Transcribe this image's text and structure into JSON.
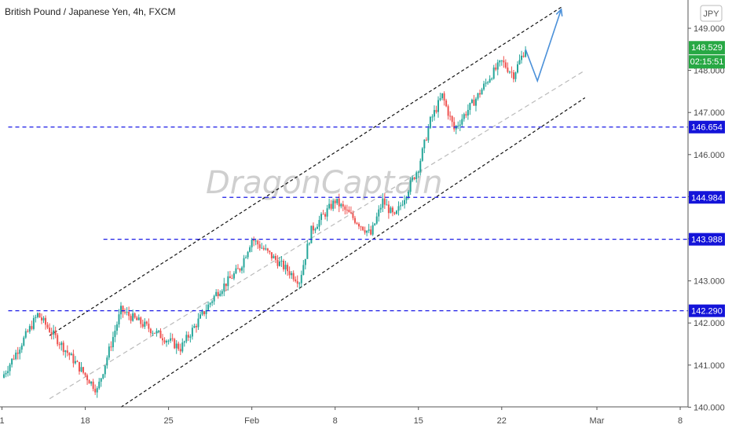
{
  "title": "British Pound / Japanese Yen, 4h, FXCM",
  "watermark": "DragonCaptain",
  "currency_label": "JPY",
  "colors": {
    "up": "#26a69a",
    "down": "#ef5350",
    "level_line": "#1a1ae6",
    "level_tag_bg": "#1414d9",
    "price_tag_bg": "#27a844",
    "arrow": "#4a90d9",
    "channel": "#111111",
    "midline": "#bbbbbb"
  },
  "chart_data": {
    "type": "candlestick",
    "title": "British Pound / Japanese Yen, 4h, FXCM",
    "y_ticks": [
      "149.000",
      "148.000",
      "147.000",
      "146.000",
      "145.000",
      "144.000",
      "143.000",
      "142.000",
      "141.000",
      "140.000"
    ],
    "x_ticks": [
      "1",
      "18",
      "25",
      "Feb",
      "8",
      "15",
      "22",
      "Mar",
      "8"
    ],
    "ylim": [
      139.95,
      149.4
    ],
    "horizontal_levels": [
      {
        "label": "146.654",
        "value": 146.654,
        "from_date": "Jan 11"
      },
      {
        "label": "144.984",
        "value": 144.984,
        "from_date": "Jan 29"
      },
      {
        "label": "143.988",
        "value": 143.988,
        "from_date": "Jan 19"
      },
      {
        "label": "142.290",
        "value": 142.29,
        "from_date": "Jan 11"
      }
    ],
    "last_price": "148.529",
    "countdown": "02:15:51",
    "channel_lines": [
      {
        "name": "upper",
        "points": [
          [
            "Jan 15",
            141.7
          ],
          [
            "Feb 27",
            149.5
          ]
        ]
      },
      {
        "name": "middle",
        "points": [
          [
            "Jan 15",
            140.2
          ],
          [
            "Feb 29",
            148.0
          ]
        ]
      },
      {
        "name": "lower",
        "points": [
          [
            "Jan 21",
            140.0
          ],
          [
            "Feb 29",
            147.35
          ]
        ]
      }
    ],
    "forecast_arrow": [
      [
        "Feb 24",
        148.5
      ],
      [
        "Feb 25",
        147.75
      ],
      [
        "Feb 27",
        149.45
      ]
    ],
    "key_points": [
      {
        "date": "Jan 11",
        "price": 140.7
      },
      {
        "date": "Jan 14",
        "price": 142.2
      },
      {
        "date": "Jan 19",
        "price": 140.4
      },
      {
        "date": "Jan 21",
        "price": 142.3
      },
      {
        "date": "Jan 26",
        "price": 141.4
      },
      {
        "date": "Jan 29",
        "price": 142.7
      },
      {
        "date": "Jan 31",
        "price": 143.3
      },
      {
        "date": "Feb 1",
        "price": 144.0
      },
      {
        "date": "Feb 5",
        "price": 143.0
      },
      {
        "date": "Feb 6",
        "price": 144.2
      },
      {
        "date": "Feb 8",
        "price": 144.9
      },
      {
        "date": "Feb 11",
        "price": 144.1
      },
      {
        "date": "Feb 12",
        "price": 144.9
      },
      {
        "date": "Feb 13",
        "price": 144.5
      },
      {
        "date": "Feb 15",
        "price": 145.7
      },
      {
        "date": "Feb 16",
        "price": 146.8
      },
      {
        "date": "Feb 17",
        "price": 147.4
      },
      {
        "date": "Feb 18",
        "price": 146.6
      },
      {
        "date": "Feb 19",
        "price": 147.0
      },
      {
        "date": "Feb 20",
        "price": 147.4
      },
      {
        "date": "Feb 21",
        "price": 147.85
      },
      {
        "date": "Feb 22",
        "price": 148.2
      },
      {
        "date": "Feb 23",
        "price": 147.9
      },
      {
        "date": "Feb 24",
        "price": 148.53
      }
    ]
  }
}
